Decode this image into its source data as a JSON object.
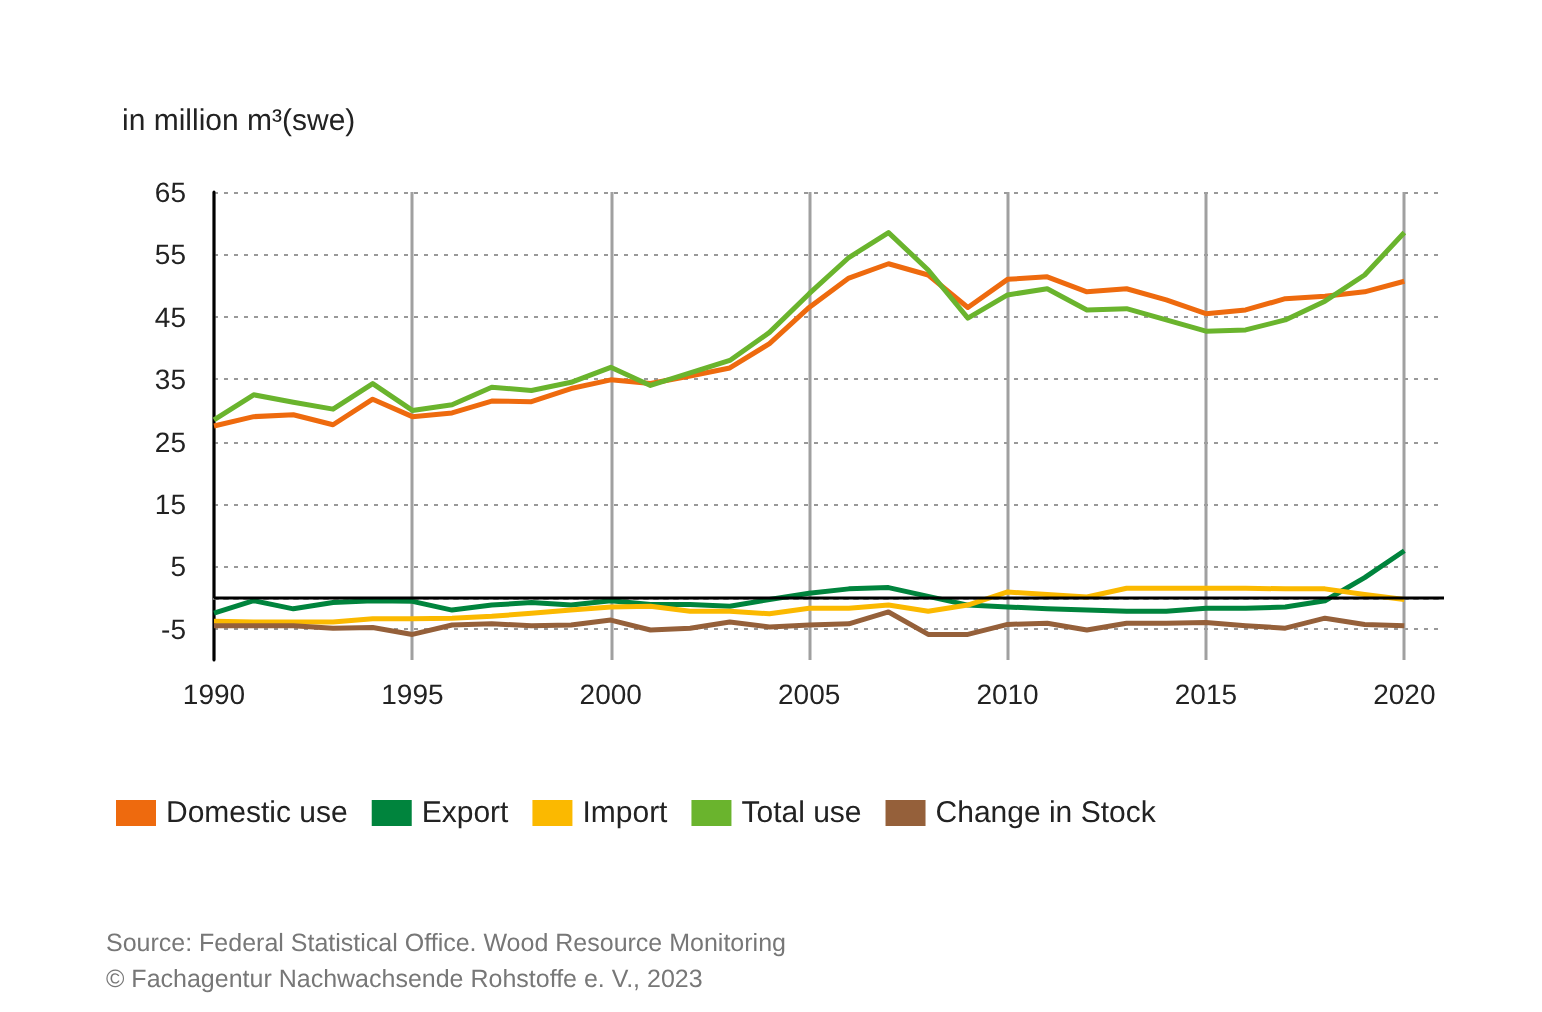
{
  "chart_data": {
    "type": "line",
    "ylabel": "in million m³(swe)",
    "x": [
      1990,
      1991,
      1992,
      1993,
      1994,
      1995,
      1996,
      1997,
      1998,
      1999,
      2000,
      2001,
      2002,
      2003,
      2004,
      2005,
      2006,
      2007,
      2008,
      2009,
      2010,
      2011,
      2012,
      2013,
      2014,
      2015,
      2016,
      2017,
      2018,
      2019,
      2020
    ],
    "series": [
      {
        "name": "Domestic use",
        "color": "#ee6a0e",
        "values": [
          27.5,
          29,
          29.3,
          27.7,
          31.8,
          29,
          29.6,
          31.5,
          31.4,
          33.5,
          34.9,
          34.3,
          35.5,
          36.8,
          40.7,
          46.5,
          51.2,
          53.5,
          51.7,
          46.5,
          51,
          51.4,
          49,
          49.5,
          47.7,
          45.5,
          46.1,
          47.9,
          48.3,
          49,
          50.7
        ]
      },
      {
        "name": "Export",
        "color": "#00843d",
        "values": [
          -2.5,
          -0.5,
          -1.8,
          -0.8,
          -0.5,
          -0.6,
          -2,
          -1.2,
          -0.8,
          -1.2,
          -0.5,
          -1.1,
          -1.1,
          -1.4,
          -0.3,
          0.7,
          1.4,
          1.6,
          0.2,
          -1.2,
          -1.5,
          -1.8,
          -2,
          -2.2,
          -2.2,
          -1.7,
          -1.7,
          -1.5,
          -0.5,
          3.2,
          7.5
        ]
      },
      {
        "name": "Import",
        "color": "#fbb900",
        "values": [
          -3.8,
          -3.9,
          -3.9,
          -3.9,
          -3.4,
          -3.4,
          -3.3,
          -3,
          -2.5,
          -2,
          -1.5,
          -1.4,
          -2.2,
          -2.2,
          -2.6,
          -1.7,
          -1.7,
          -1.2,
          -2.2,
          -1.2,
          0.9,
          0.5,
          0.1,
          1.5,
          1.5,
          1.5,
          1.5,
          1.4,
          1.4,
          0.5,
          -0.3
        ]
      },
      {
        "name": "Total use",
        "color": "#6ab42d",
        "values": [
          28.5,
          32.5,
          31.3,
          30.2,
          34.3,
          30,
          30.9,
          33.7,
          33.2,
          34.5,
          36.9,
          34,
          36,
          38,
          42.5,
          48.7,
          54.5,
          58.5,
          52.5,
          44.8,
          48.5,
          49.5,
          46.1,
          46.3,
          44.5,
          42.7,
          42.9,
          44.5,
          47.5,
          51.7,
          58.5
        ]
      },
      {
        "name": "Change in Stock",
        "color": "#95603a",
        "values": [
          -4.5,
          -4.5,
          -4.5,
          -4.9,
          -4.8,
          -5.9,
          -4.4,
          -4.2,
          -4.5,
          -4.4,
          -3.6,
          -5.2,
          -4.9,
          -3.9,
          -4.7,
          -4.4,
          -4.2,
          -2.3,
          -5.9,
          -5.9,
          -4.3,
          -4.1,
          -5.2,
          -4.1,
          -4.1,
          -4,
          -4.5,
          -4.9,
          -3.3,
          -4.3,
          -4.5
        ]
      }
    ],
    "xlim": [
      1990,
      2021
    ],
    "xticks": [
      1990,
      1995,
      2000,
      2005,
      2010,
      2015,
      2020
    ],
    "ylim": [
      -10,
      65
    ],
    "yticks": [
      -5,
      5,
      15,
      25,
      35,
      45,
      55,
      65
    ],
    "ref_lines": [
      {
        "axis": "y",
        "value": 0,
        "color": "#000000"
      }
    ],
    "grid": true,
    "legend": "bottom",
    "marker": "none",
    "line_style": "solid",
    "annotations": [
      "Source: Federal Statistical Office. Wood Resource Monitoring",
      "© Fachagentur Nachwachsende Rohstoffe e. V., 2023"
    ]
  }
}
